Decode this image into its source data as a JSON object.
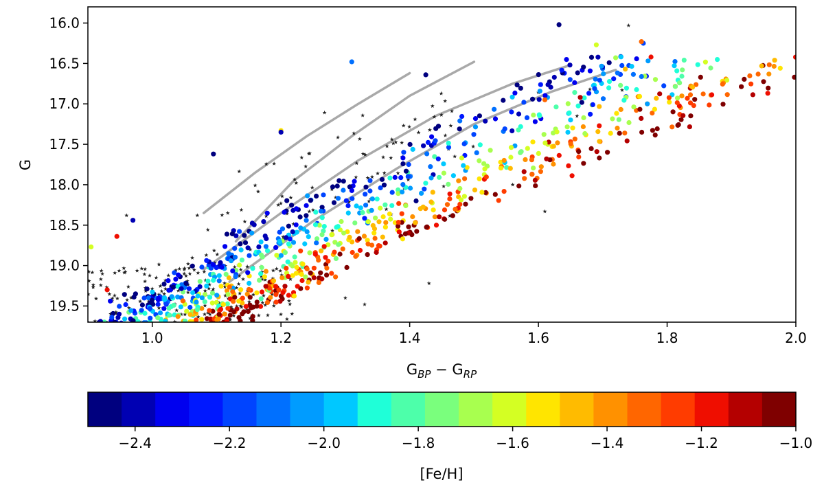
{
  "chart_data": {
    "type": "scatter",
    "title": "",
    "xlabel": {
      "main": "G",
      "sub1": "BP",
      "minus": " − G",
      "sub2": "RP"
    },
    "ylabel": "G",
    "xlim": [
      0.9,
      2.0
    ],
    "ylim": [
      19.7,
      15.8
    ],
    "y_inverted": true,
    "grid": false,
    "xticks": [
      1.0,
      1.2,
      1.4,
      1.6,
      1.8,
      2.0
    ],
    "xtick_labels": [
      "1.0",
      "1.2",
      "1.4",
      "1.6",
      "1.8",
      "2.0"
    ],
    "yticks": [
      16.0,
      16.5,
      17.0,
      17.5,
      18.0,
      18.5,
      19.0,
      19.5
    ],
    "ytick_labels": [
      "16.0",
      "16.5",
      "17.0",
      "17.5",
      "18.0",
      "18.5",
      "19.0",
      "19.5"
    ],
    "colorbar": {
      "label": "[Fe/H]",
      "range": [
        -2.5,
        -1.0
      ],
      "ticks": [
        -2.4,
        -2.2,
        -2.0,
        -1.8,
        -1.6,
        -1.4,
        -1.2,
        -1.0
      ],
      "tick_labels": [
        "−2.4",
        "−2.2",
        "−2.0",
        "−1.8",
        "−1.6",
        "−1.4",
        "−1.2",
        "−1.0"
      ],
      "bins": 21,
      "colormap": "jet",
      "colors": [
        "#00007f",
        "#0000b3",
        "#0000ef",
        "#0018ff",
        "#0044ff",
        "#0070ff",
        "#009cff",
        "#00c8ff",
        "#1fffd8",
        "#4dffaa",
        "#7aff7d",
        "#a8ff4f",
        "#d4ff23",
        "#ffe500",
        "#ffbb00",
        "#ff9100",
        "#ff6600",
        "#ff3c00",
        "#ef0e00",
        "#b40000",
        "#7f0000"
      ]
    },
    "isochrones": {
      "style": {
        "color": "#a9a9a9",
        "name": "isochrone"
      },
      "series": [
        {
          "name": "isochrone-1",
          "x": [
            1.08,
            1.16,
            1.24,
            1.32,
            1.4
          ],
          "y": [
            18.35,
            17.85,
            17.4,
            17.0,
            16.62
          ]
        },
        {
          "name": "isochrone-2",
          "x": [
            1.13,
            1.22,
            1.31,
            1.4,
            1.5
          ],
          "y": [
            18.7,
            17.95,
            17.4,
            16.9,
            16.48
          ]
        },
        {
          "name": "isochrone-3",
          "x": [
            1.08,
            1.2,
            1.32,
            1.44,
            1.56,
            1.65
          ],
          "y": [
            19.05,
            18.35,
            17.7,
            17.15,
            16.75,
            16.52
          ]
        },
        {
          "name": "isochrone-4",
          "x": [
            1.12,
            1.25,
            1.38,
            1.5,
            1.62,
            1.72
          ],
          "y": [
            19.2,
            18.45,
            17.8,
            17.25,
            16.85,
            16.58
          ]
        }
      ]
    },
    "member_stars": [
      {
        "x": 1.632,
        "y": 16.02,
        "feh": -2.45
      },
      {
        "x": 1.763,
        "y": 16.25,
        "feh": -2.2
      },
      {
        "x": 1.775,
        "y": 16.42,
        "feh": -1.15
      },
      {
        "x": 1.852,
        "y": 16.67,
        "feh": -1.05
      },
      {
        "x": 1.735,
        "y": 16.57,
        "feh": -1.45
      },
      {
        "x": 1.72,
        "y": 16.43,
        "feh": -1.7
      },
      {
        "x": 1.69,
        "y": 16.27,
        "feh": -1.62
      },
      {
        "x": 1.31,
        "y": 16.48,
        "feh": -2.1
      },
      {
        "x": 1.425,
        "y": 16.64,
        "feh": -2.45
      },
      {
        "x": 1.2,
        "y": 17.33,
        "feh": -1.55
      },
      {
        "x": 1.2,
        "y": 17.35,
        "feh": -2.4
      },
      {
        "x": 1.095,
        "y": 17.62,
        "feh": -2.45
      },
      {
        "x": 0.97,
        "y": 18.44,
        "feh": -2.4
      },
      {
        "x": 0.945,
        "y": 18.64,
        "feh": -1.15
      },
      {
        "x": 0.905,
        "y": 18.77,
        "feh": -1.6
      },
      {
        "x": 0.93,
        "y": 19.3,
        "feh": -1.15
      },
      {
        "x": 1.595,
        "y": 17.22,
        "feh": -2.3
      },
      {
        "x": 1.41,
        "y": 18.2,
        "feh": -2.45
      },
      {
        "x": 1.238,
        "y": 19.14,
        "feh": -1.7
      },
      {
        "x": 1.665,
        "y": 16.92,
        "feh": -1.1
      },
      {
        "x": 1.61,
        "y": 16.95,
        "feh": -1.3
      },
      {
        "x": 1.76,
        "y": 16.23,
        "feh": -1.35
      }
    ],
    "field_stars": [
      {
        "x": 1.74,
        "y": 16.03
      },
      {
        "x": 1.73,
        "y": 16.83
      },
      {
        "x": 1.66,
        "y": 17.15
      },
      {
        "x": 1.6,
        "y": 16.86
      },
      {
        "x": 1.61,
        "y": 18.33
      },
      {
        "x": 1.43,
        "y": 19.22
      },
      {
        "x": 1.33,
        "y": 19.48
      },
      {
        "x": 1.07,
        "y": 18.38
      },
      {
        "x": 0.96,
        "y": 18.38
      },
      {
        "x": 1.3,
        "y": 19.4
      },
      {
        "x": 1.56,
        "y": 18.0
      },
      {
        "x": 1.47,
        "y": 17.65
      },
      {
        "x": 1.12,
        "y": 19.66
      },
      {
        "x": 1.68,
        "y": 16.82
      }
    ],
    "synthetic_fill": {
      "description": "dense populations along the sequence ridge",
      "member_count": 1050,
      "field_count": 260
    }
  }
}
